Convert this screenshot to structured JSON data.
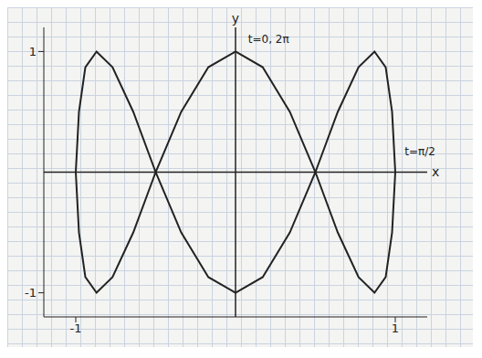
{
  "chart_data": {
    "type": "line",
    "xlabel": "x",
    "ylabel": "y",
    "x": [
      0,
      0.17,
      0.34,
      0.5,
      0.64,
      0.77,
      0.87,
      0.94,
      0.98,
      1,
      0.98,
      0.94,
      0.87,
      0.77,
      0.64,
      0.5,
      0.34,
      0.17,
      0,
      -0.17,
      -0.34,
      -0.5,
      -0.64,
      -0.77,
      -0.87,
      -0.94,
      -0.98,
      -1,
      -0.98,
      -0.94,
      -0.87,
      -0.77,
      -0.64,
      -0.5,
      -0.34,
      -0.17,
      0
    ],
    "values": [
      1,
      0.87,
      0.5,
      0,
      -0.5,
      -0.87,
      -1,
      -0.87,
      -0.5,
      0,
      0.5,
      0.87,
      1,
      0.87,
      0.5,
      0,
      -0.5,
      -0.87,
      -1,
      -0.87,
      -0.5,
      0,
      0.5,
      0.87,
      1,
      0.87,
      0.5,
      0,
      -0.5,
      -0.87,
      -1,
      -0.87,
      -0.5,
      0,
      0.5,
      0.87,
      1
    ],
    "color": "#222222",
    "xlim": [
      -1.2,
      1.2
    ],
    "ylim": [
      -1.2,
      1.2
    ],
    "xticks": [
      -1,
      1
    ],
    "yticks": [
      -1,
      1
    ],
    "annotations": [
      {
        "text": "t=0, 2π",
        "x": 0.05,
        "y": 1.1
      },
      {
        "text": "t=π/2",
        "x": 1.03,
        "y": 0.17
      }
    ]
  }
}
